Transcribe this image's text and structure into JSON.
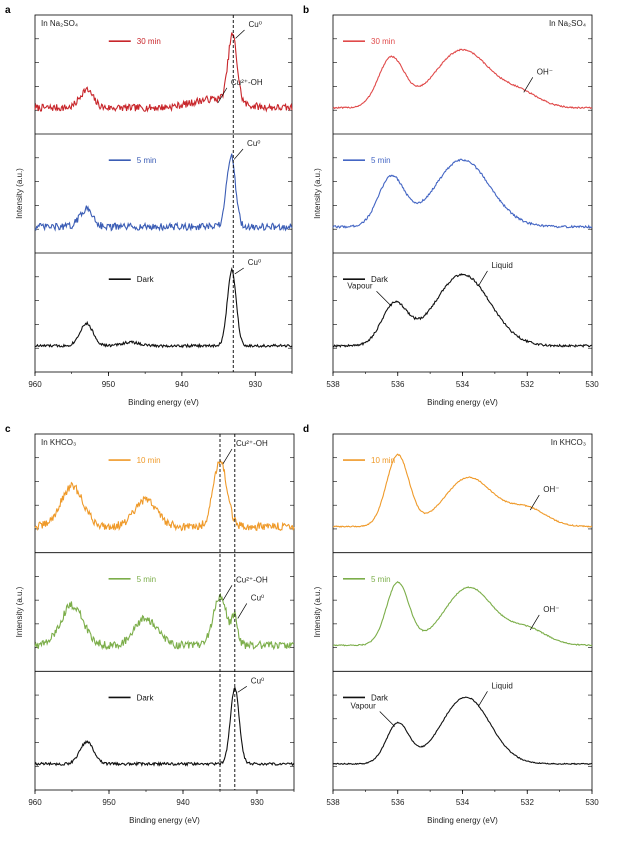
{
  "chart_data": [
    {
      "type": "line",
      "panel_label": "a",
      "condition": "In Na₂SO₄",
      "xlabel": "Binding energy (eV)",
      "ylabel": "Intensity (a.u.)",
      "xlim": [
        960,
        925
      ],
      "xticks": [
        960,
        950,
        940,
        930
      ],
      "reference_lines": [
        933
      ],
      "stacked_series": [
        {
          "name": "30 min",
          "color": "#c8262b",
          "peaks": [
            [
              953,
              0.2,
              0.9
            ],
            [
              933.1,
              0.75,
              0.6
            ],
            [
              935.5,
              0.1,
              3.0
            ]
          ],
          "noise": 0.04,
          "annotations": [
            {
              "text": "Cu⁰",
              "x": 933.1
            },
            {
              "text": "Cu²⁺-OH",
              "x": 935.5
            }
          ]
        },
        {
          "name": "5 min",
          "color": "#3b5db5",
          "peaks": [
            [
              953,
              0.2,
              0.9
            ],
            [
              933.3,
              0.8,
              0.6
            ]
          ],
          "noise": 0.04,
          "annotations": [
            {
              "text": "Cu⁰",
              "x": 933.3
            }
          ]
        },
        {
          "name": "Dark",
          "color": "#111111",
          "peaks": [
            [
              953,
              0.25,
              0.9
            ],
            [
              947,
              0.04,
              1.2
            ],
            [
              933.2,
              0.85,
              0.6
            ]
          ],
          "noise": 0.015,
          "annotations": [
            {
              "text": "Cu⁰",
              "x": 933.2
            }
          ]
        }
      ]
    },
    {
      "type": "line",
      "panel_label": "b",
      "condition": "In Na₂SO₄",
      "xlabel": "Binding energy (eV)",
      "ylabel": "Intensity (a.u.)",
      "xlim": [
        538,
        530
      ],
      "xticks": [
        538,
        536,
        534,
        532,
        530
      ],
      "stacked_series": [
        {
          "name": "30 min",
          "color": "#e04a4a",
          "peaks": [
            [
              536.2,
              0.55,
              0.4
            ],
            [
              534.0,
              0.65,
              0.85
            ],
            [
              532.2,
              0.15,
              0.6
            ]
          ],
          "noise": 0.008,
          "annotations": [
            {
              "text": "OH⁻",
              "x": 532.2
            }
          ]
        },
        {
          "name": "5 min",
          "color": "#4466c4",
          "peaks": [
            [
              536.2,
              0.55,
              0.4
            ],
            [
              534.0,
              0.75,
              0.85
            ]
          ],
          "noise": 0.012,
          "annotations": []
        },
        {
          "name": "Dark",
          "color": "#111111",
          "peaks": [
            [
              536.1,
              0.45,
              0.4
            ],
            [
              534.0,
              0.8,
              0.85
            ]
          ],
          "noise": 0.012,
          "annotations": [
            {
              "text": "Vapour",
              "x": 536.1
            },
            {
              "text": "Liquid",
              "x": 533.6
            }
          ]
        }
      ]
    },
    {
      "type": "line",
      "panel_label": "c",
      "condition": "In KHCO₃",
      "xlabel": "Binding energy (eV)",
      "ylabel": "Intensity (a.u.)",
      "xlim": [
        960,
        925
      ],
      "xticks": [
        960,
        950,
        940,
        930
      ],
      "reference_lines": [
        935,
        933
      ],
      "stacked_series": [
        {
          "name": "10 min",
          "color": "#ef9a2a",
          "peaks": [
            [
              955,
              0.45,
              1.5
            ],
            [
              945,
              0.3,
              1.5
            ],
            [
              935,
              0.75,
              0.9
            ]
          ],
          "noise": 0.045,
          "annotations": [
            {
              "text": "Cu²⁺-OH",
              "x": 935
            }
          ]
        },
        {
          "name": "5 min",
          "color": "#7cae4a",
          "peaks": [
            [
              955,
              0.45,
              1.5
            ],
            [
              945,
              0.3,
              1.5
            ],
            [
              935,
              0.55,
              0.9
            ],
            [
              933,
              0.3,
              0.4
            ]
          ],
          "noise": 0.045,
          "annotations": [
            {
              "text": "Cu²⁺-OH",
              "x": 935
            },
            {
              "text": "Cu⁰",
              "x": 933
            }
          ]
        },
        {
          "name": "Dark",
          "color": "#111111",
          "peaks": [
            [
              953,
              0.25,
              0.9
            ],
            [
              933,
              0.85,
              0.6
            ]
          ],
          "noise": 0.015,
          "annotations": [
            {
              "text": "Cu⁰",
              "x": 933
            }
          ]
        }
      ]
    },
    {
      "type": "line",
      "panel_label": "d",
      "condition": "In KHCO₃",
      "xlabel": "Binding energy (eV)",
      "ylabel": "Intensity (a.u.)",
      "xlim": [
        538,
        530
      ],
      "xticks": [
        538,
        536,
        534,
        532,
        530
      ],
      "stacked_series": [
        {
          "name": "10 min",
          "color": "#ef9a2a",
          "peaks": [
            [
              536.0,
              0.8,
              0.35
            ],
            [
              533.8,
              0.55,
              0.75
            ],
            [
              532.0,
              0.2,
              0.6
            ]
          ],
          "noise": 0.006,
          "annotations": [
            {
              "text": "OH⁻",
              "x": 532.0
            }
          ]
        },
        {
          "name": "5 min",
          "color": "#7cae4a",
          "peaks": [
            [
              536.0,
              0.7,
              0.35
            ],
            [
              533.8,
              0.65,
              0.75
            ],
            [
              532.0,
              0.18,
              0.6
            ]
          ],
          "noise": 0.006,
          "annotations": [
            {
              "text": "OH⁻",
              "x": 532.0
            }
          ]
        },
        {
          "name": "Dark",
          "color": "#111111",
          "peaks": [
            [
              536.0,
              0.45,
              0.35
            ],
            [
              533.9,
              0.75,
              0.75
            ]
          ],
          "noise": 0.006,
          "annotations": [
            {
              "text": "Vapour",
              "x": 536.0
            },
            {
              "text": "Liquid",
              "x": 533.6
            }
          ]
        }
      ]
    }
  ]
}
